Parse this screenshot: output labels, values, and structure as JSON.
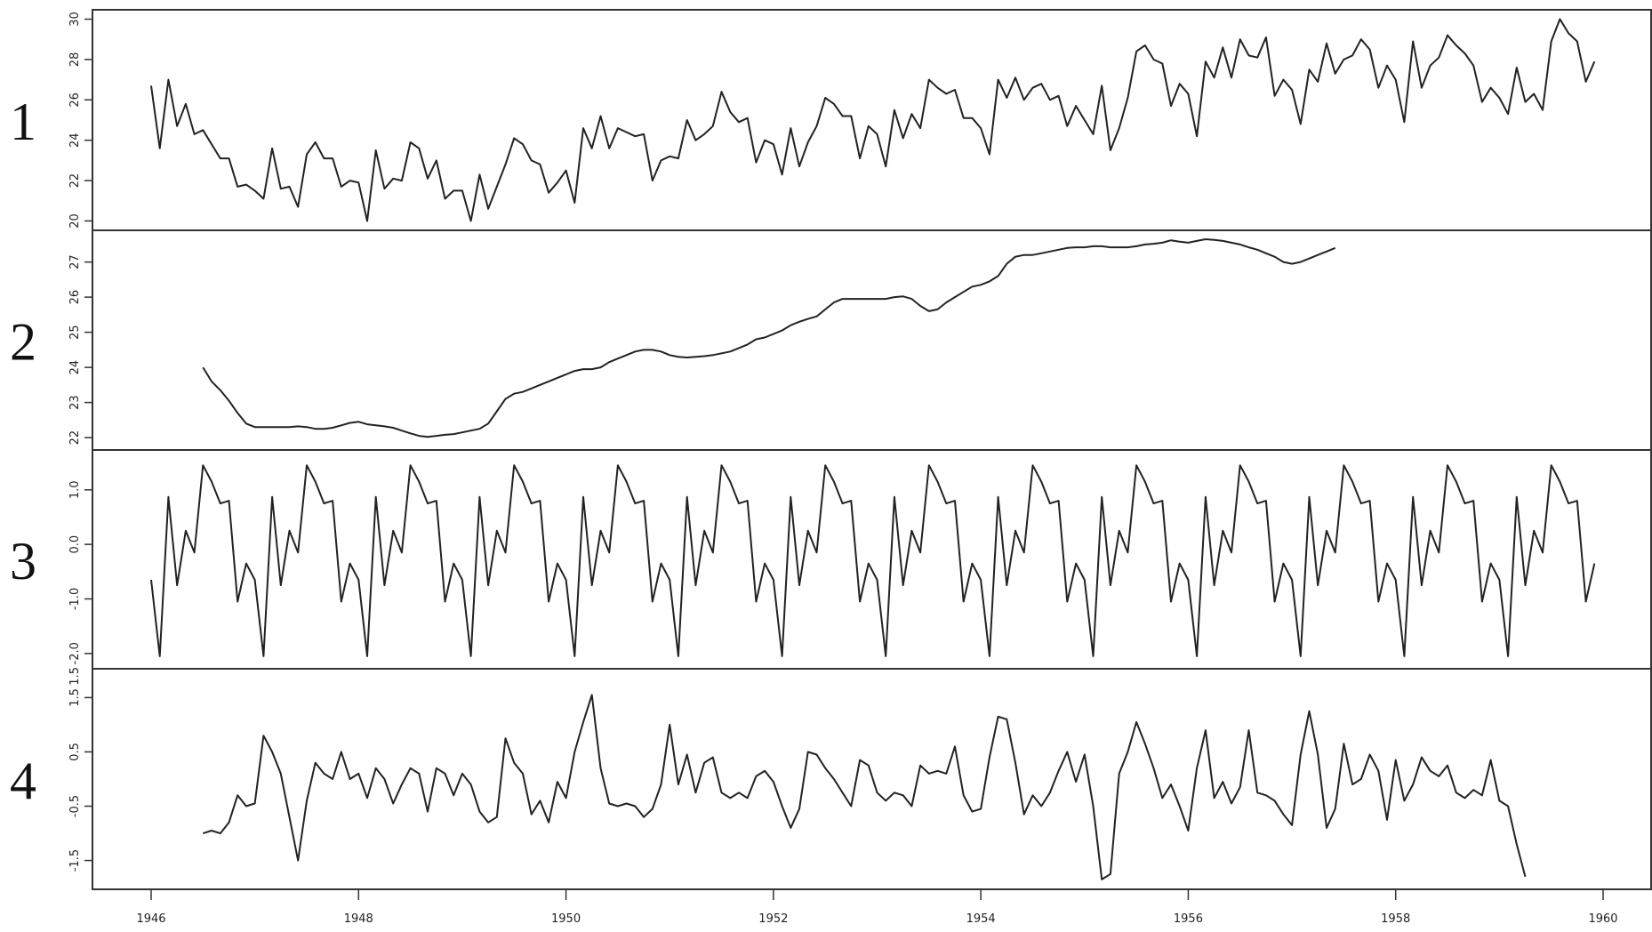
{
  "chart_data": {
    "type": "line",
    "x_range": [
      1946,
      1960
    ],
    "x_ticks": [
      "1946",
      "1948",
      "1950",
      "1952",
      "1954",
      "1956",
      "1958",
      "1960"
    ],
    "panels": [
      {
        "number": "1",
        "ylim": [
          19.8,
          30.2
        ],
        "y_ticks": [
          "20",
          "22",
          "24",
          "26",
          "28",
          "30"
        ],
        "start": 1946.0,
        "step": 0.0833333,
        "values": [
          26.7,
          23.6,
          27.0,
          24.7,
          25.8,
          24.3,
          24.5,
          23.8,
          23.1,
          23.1,
          21.7,
          21.8,
          21.5,
          21.1,
          23.6,
          21.6,
          21.7,
          20.7,
          23.3,
          23.9,
          23.1,
          23.1,
          21.7,
          22.0,
          21.9,
          20.0,
          23.5,
          21.6,
          22.1,
          22.0,
          23.9,
          23.6,
          22.1,
          23.0,
          21.1,
          21.5,
          21.5,
          20.0,
          22.3,
          20.6,
          21.7,
          22.8,
          24.1,
          23.8,
          23.0,
          22.8,
          21.4,
          21.9,
          22.5,
          20.9,
          24.6,
          23.6,
          25.2,
          23.6,
          24.6,
          24.4,
          24.2,
          24.3,
          22.0,
          23.0,
          23.2,
          23.1,
          25.0,
          24.0,
          24.3,
          24.7,
          26.4,
          25.4,
          24.9,
          25.1,
          22.9,
          24.0,
          23.8,
          22.3,
          24.6,
          22.7,
          23.9,
          24.7,
          26.1,
          25.8,
          25.2,
          25.2,
          23.1,
          24.7,
          24.3,
          22.7,
          25.5,
          24.1,
          25.3,
          24.6,
          27.0,
          26.6,
          26.3,
          26.5,
          25.1,
          25.1,
          24.6,
          23.3,
          27.0,
          26.1,
          27.1,
          26.0,
          26.6,
          26.8,
          26.0,
          26.2,
          24.7,
          25.7,
          25.0,
          24.3,
          26.7,
          23.5,
          24.6,
          26.1,
          28.4,
          28.7,
          28.0,
          27.8,
          25.7,
          26.8,
          26.3,
          24.2,
          27.9,
          27.1,
          28.6,
          27.1,
          29.0,
          28.2,
          28.1,
          29.1,
          26.2,
          27.0,
          26.5,
          24.8,
          27.5,
          26.9,
          28.8,
          27.3,
          28.0,
          28.2,
          29.0,
          28.5,
          26.6,
          27.7,
          27.0,
          24.9,
          28.9,
          26.6,
          27.7,
          28.1,
          29.2,
          28.7,
          28.3,
          27.7,
          25.9,
          26.6,
          26.1,
          25.3,
          27.6,
          25.9,
          26.3,
          25.5,
          28.9,
          30.0,
          29.3,
          28.9,
          26.9,
          27.9
        ]
      },
      {
        "number": "2",
        "ylim": [
          21.85,
          27.7
        ],
        "y_ticks": [
          "22",
          "23",
          "24",
          "25",
          "26",
          "27"
        ],
        "start": 1946.5,
        "step": 0.0833333,
        "values": [
          24.0,
          23.6,
          23.35,
          23.05,
          22.7,
          22.4,
          22.3,
          22.3,
          22.3,
          22.3,
          22.3,
          22.32,
          22.3,
          22.25,
          22.25,
          22.28,
          22.35,
          22.42,
          22.45,
          22.38,
          22.35,
          22.32,
          22.28,
          22.2,
          22.12,
          22.05,
          22.02,
          22.05,
          22.08,
          22.1,
          22.15,
          22.2,
          22.25,
          22.4,
          22.75,
          23.1,
          23.25,
          23.3,
          23.4,
          23.5,
          23.6,
          23.7,
          23.8,
          23.9,
          23.95,
          23.95,
          24.0,
          24.15,
          24.25,
          24.35,
          24.45,
          24.5,
          24.5,
          24.45,
          24.35,
          24.3,
          24.28,
          24.3,
          24.32,
          24.35,
          24.4,
          24.45,
          24.55,
          24.65,
          24.8,
          24.85,
          24.95,
          25.05,
          25.2,
          25.3,
          25.38,
          25.45,
          25.65,
          25.85,
          25.95,
          25.95,
          25.95,
          25.95,
          25.95,
          25.95,
          26.0,
          26.02,
          25.95,
          25.75,
          25.6,
          25.65,
          25.85,
          26.0,
          26.15,
          26.3,
          26.35,
          26.45,
          26.6,
          26.95,
          27.15,
          27.2,
          27.2,
          27.25,
          27.3,
          27.35,
          27.4,
          27.42,
          27.42,
          27.45,
          27.45,
          27.42,
          27.42,
          27.42,
          27.45,
          27.5,
          27.52,
          27.55,
          27.62,
          27.58,
          27.55,
          27.6,
          27.65,
          27.63,
          27.6,
          27.55,
          27.5,
          27.42,
          27.35,
          27.25,
          27.15,
          27.0,
          26.95,
          27.0,
          27.1,
          27.2,
          27.3,
          27.4
        ]
      },
      {
        "number": "3",
        "ylim": [
          -2.15,
          1.6
        ],
        "y_ticks": [
          "-2.0",
          "-1.0",
          "0.0",
          "1.0"
        ],
        "extra_tick_label": "1.5",
        "start": 1946.0,
        "step": 0.0833333,
        "season": [
          -0.65,
          -2.05,
          0.87,
          -0.75,
          0.25,
          -0.15,
          1.45,
          1.15,
          0.75,
          0.8,
          -1.05,
          -0.35
        ]
      },
      {
        "number": "4",
        "ylim": [
          -1.9,
          1.9
        ],
        "y_ticks": [
          "-1.5",
          "-0.5",
          "0.5",
          "1.5"
        ],
        "start": 1946.5,
        "step": 0.0833333,
        "values": [
          -1.0,
          -0.95,
          -1.0,
          -0.8,
          -0.3,
          -0.5,
          -0.45,
          0.8,
          0.5,
          0.1,
          -0.7,
          -1.5,
          -0.4,
          0.3,
          0.1,
          0.0,
          0.5,
          0.0,
          0.1,
          -0.35,
          0.2,
          0.0,
          -0.45,
          -0.1,
          0.2,
          0.1,
          -0.6,
          0.2,
          0.1,
          -0.3,
          0.1,
          -0.1,
          -0.6,
          -0.8,
          -0.7,
          0.75,
          0.3,
          0.1,
          -0.65,
          -0.4,
          -0.8,
          -0.05,
          -0.35,
          0.5,
          1.05,
          1.55,
          0.2,
          -0.45,
          -0.5,
          -0.45,
          -0.5,
          -0.7,
          -0.55,
          -0.1,
          1.0,
          -0.1,
          0.45,
          -0.25,
          0.3,
          0.4,
          -0.25,
          -0.35,
          -0.25,
          -0.35,
          0.05,
          0.15,
          -0.05,
          -0.5,
          -0.9,
          -0.55,
          0.5,
          0.45,
          0.2,
          0.0,
          -0.25,
          -0.5,
          0.35,
          0.25,
          -0.25,
          -0.4,
          -0.25,
          -0.3,
          -0.5,
          0.25,
          0.1,
          0.15,
          0.1,
          0.6,
          -0.3,
          -0.6,
          -0.55,
          0.4,
          1.15,
          1.1,
          0.3,
          -0.65,
          -0.3,
          -0.5,
          -0.25,
          0.15,
          0.5,
          -0.05,
          0.45,
          -0.5,
          -1.85,
          -1.75,
          0.1,
          0.5,
          1.05,
          0.65,
          0.2,
          -0.35,
          -0.1,
          -0.5,
          -0.95,
          0.2,
          0.9,
          -0.35,
          -0.05,
          -0.45,
          -0.15,
          0.9,
          -0.25,
          -0.3,
          -0.4,
          -0.65,
          -0.85,
          0.45,
          1.25,
          0.45,
          -0.9,
          -0.55,
          0.65,
          -0.1,
          0.0,
          0.45,
          0.15,
          -0.75,
          0.35,
          -0.4,
          -0.1,
          0.4,
          0.15,
          0.05,
          0.25,
          -0.25,
          -0.35,
          -0.2,
          -0.3,
          0.35,
          -0.4,
          -0.5,
          -1.2,
          -1.8
        ]
      }
    ]
  }
}
